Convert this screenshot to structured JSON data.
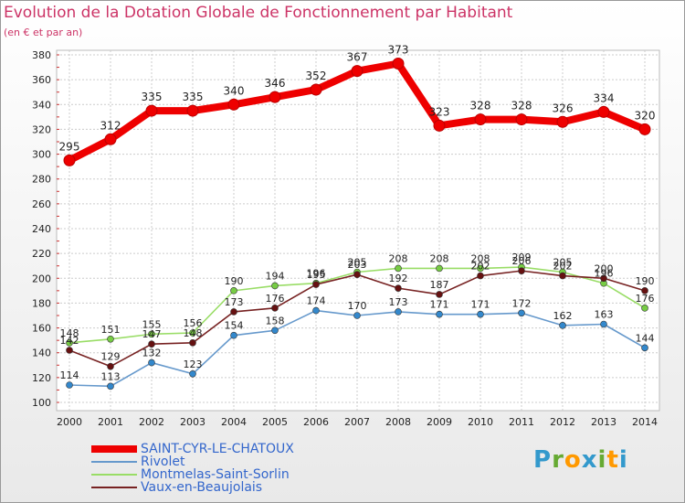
{
  "header": {
    "title": "Evolution de la Dotation Globale de Fonctionnement par Habitant",
    "subtitle": "(en € et par an)"
  },
  "logo": {
    "text": "Proxiti",
    "colors": [
      "#3399cc",
      "#66aa33",
      "#ff9900",
      "#3399cc",
      "#66aa33",
      "#ff9900",
      "#3399cc"
    ]
  },
  "chart_data": {
    "type": "line",
    "title": "Evolution de la Dotation Globale de Fonctionnement par Habitant",
    "subtitle": "(en € et par an)",
    "xlabel": "",
    "ylabel": "",
    "ylim": [
      100,
      380
    ],
    "yticks": [
      100,
      120,
      140,
      160,
      180,
      200,
      220,
      240,
      260,
      280,
      300,
      320,
      340,
      360,
      380
    ],
    "categories": [
      "2000",
      "2001",
      "2002",
      "2003",
      "2004",
      "2005",
      "2006",
      "2007",
      "2008",
      "2009",
      "2010",
      "2011",
      "2012",
      "2013",
      "2014"
    ],
    "grid": true,
    "series": [
      {
        "name": "SAINT-CYR-LE-CHATOUX",
        "color": "#ee0000",
        "dot": "#cc0000",
        "major": true,
        "values": [
          295,
          312,
          335,
          335,
          340,
          346,
          352,
          367,
          373,
          323,
          328,
          328,
          326,
          334,
          320
        ]
      },
      {
        "name": "Rivolet",
        "color": "#6699cc",
        "dot": "#3388cc",
        "major": false,
        "values": [
          114,
          113,
          132,
          123,
          154,
          158,
          174,
          170,
          173,
          171,
          171,
          172,
          162,
          163,
          144
        ]
      },
      {
        "name": "Montmelas-Saint-Sorlin",
        "color": "#99dd66",
        "dot": "#77cc44",
        "major": false,
        "values": [
          148,
          151,
          155,
          156,
          190,
          194,
          196,
          205,
          208,
          208,
          208,
          209,
          205,
          196,
          176
        ]
      },
      {
        "name": "Vaux-en-Beaujolais",
        "color": "#772222",
        "dot": "#661111",
        "major": false,
        "values": [
          142,
          129,
          147,
          148,
          173,
          176,
          195,
          203,
          192,
          187,
          202,
          206,
          202,
          200,
          190
        ]
      }
    ],
    "legend_position": "bottom-left"
  }
}
